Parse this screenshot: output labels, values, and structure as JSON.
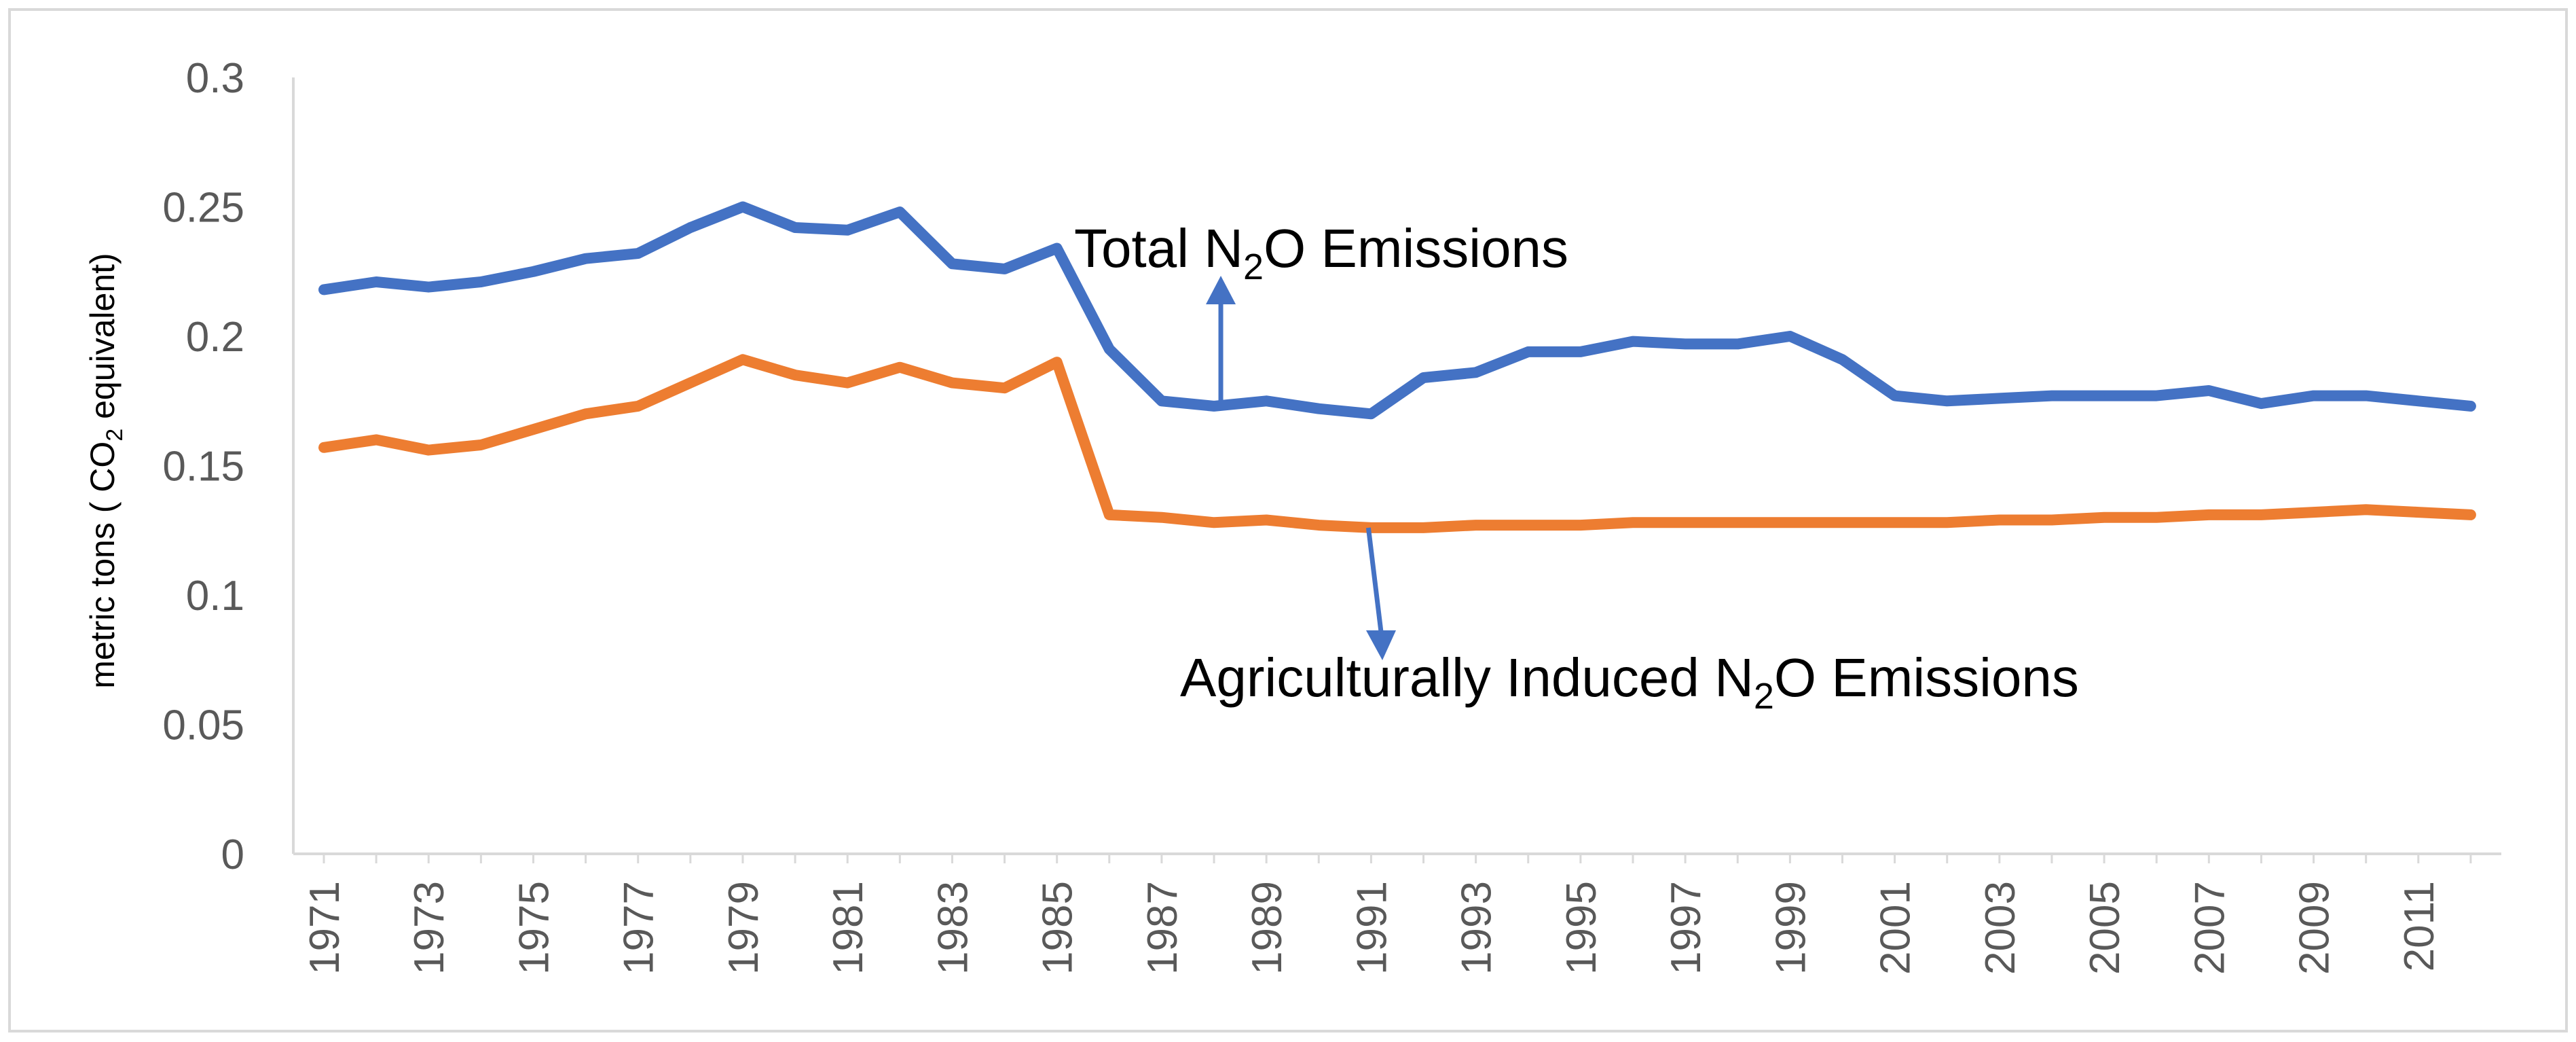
{
  "chart_data": {
    "type": "line",
    "title": "",
    "xlabel": "",
    "ylabel": {
      "prefix": "metric tons ( CO",
      "subscript": "2",
      "suffix": " equivalent)"
    },
    "ylim": [
      0,
      0.3
    ],
    "y_ticks": [
      "0",
      "0.05",
      "0.1",
      "0.15",
      "0.2",
      "0.25",
      "0.3"
    ],
    "x": [
      1971,
      1972,
      1973,
      1974,
      1975,
      1976,
      1977,
      1978,
      1979,
      1980,
      1981,
      1982,
      1983,
      1984,
      1985,
      1986,
      1987,
      1988,
      1989,
      1990,
      1991,
      1992,
      1993,
      1994,
      1995,
      1996,
      1997,
      1998,
      1999,
      2000,
      2001,
      2002,
      2003,
      2004,
      2005,
      2006,
      2007,
      2008,
      2009,
      2010,
      2011,
      2012
    ],
    "x_tick_labels": [
      "1971",
      "1973",
      "1975",
      "1977",
      "1979",
      "1981",
      "1983",
      "1985",
      "1987",
      "1989",
      "1991",
      "1993",
      "1995",
      "1997",
      "1999",
      "2001",
      "2003",
      "2005",
      "2007",
      "2009",
      "2011"
    ],
    "series": [
      {
        "name": "Total N2O Emissions",
        "color": "#4472C4",
        "values": [
          0.218,
          0.221,
          0.219,
          0.221,
          0.225,
          0.23,
          0.232,
          0.242,
          0.25,
          0.242,
          0.241,
          0.248,
          0.228,
          0.226,
          0.234,
          0.195,
          0.175,
          0.173,
          0.175,
          0.172,
          0.17,
          0.184,
          0.186,
          0.194,
          0.194,
          0.198,
          0.197,
          0.197,
          0.2,
          0.191,
          0.177,
          0.175,
          0.176,
          0.177,
          0.177,
          0.177,
          0.179,
          0.174,
          0.177,
          0.177,
          0.175,
          0.173
        ]
      },
      {
        "name": "Agriculturally Induced N2O Emissions",
        "color": "#ED7D31",
        "values": [
          0.157,
          0.16,
          0.156,
          0.158,
          0.164,
          0.17,
          0.173,
          0.182,
          0.191,
          0.185,
          0.182,
          0.188,
          0.182,
          0.18,
          0.19,
          0.131,
          0.13,
          0.128,
          0.129,
          0.127,
          0.126,
          0.126,
          0.127,
          0.127,
          0.127,
          0.128,
          0.128,
          0.128,
          0.128,
          0.128,
          0.128,
          0.128,
          0.129,
          0.129,
          0.13,
          0.13,
          0.131,
          0.131,
          0.132,
          0.133,
          0.132,
          0.131
        ]
      }
    ],
    "annotations": [
      {
        "id": "total",
        "text_before": "Total N",
        "subscript": "2",
        "text_after": "O Emissions",
        "arrow_from_year": 1988,
        "direction": "up"
      },
      {
        "id": "agri",
        "text_before": "Agriculturally Induced N",
        "subscript": "2",
        "text_after": "O Emissions",
        "arrow_from_year": 1991,
        "direction": "down"
      }
    ]
  }
}
